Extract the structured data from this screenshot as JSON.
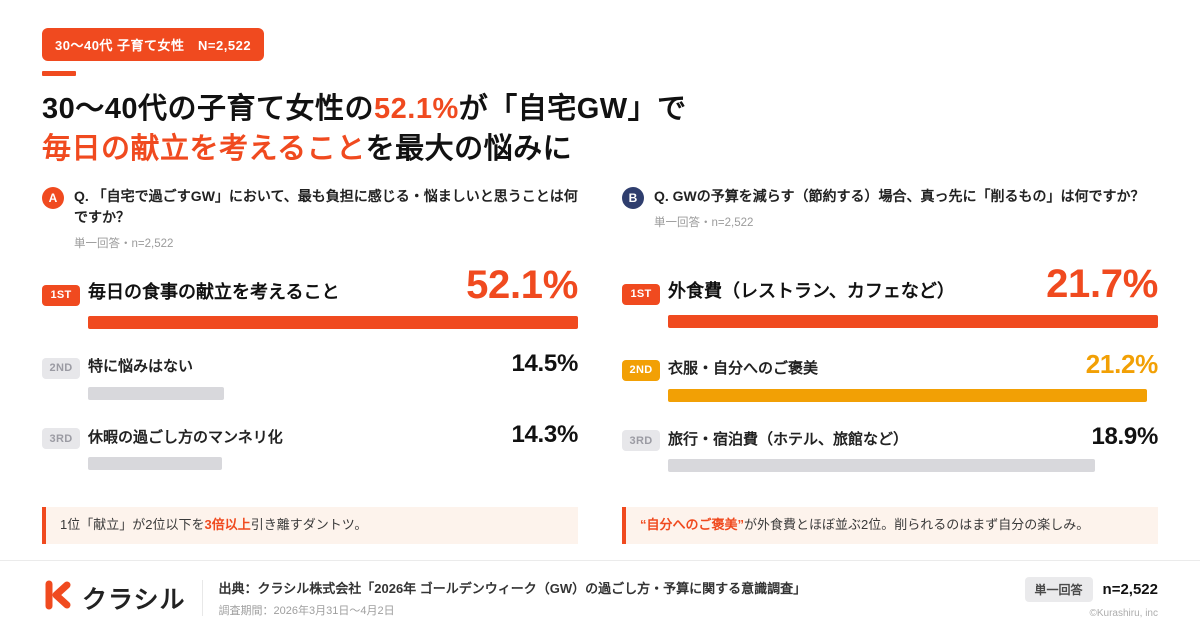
{
  "colors": {
    "accent": "#F04A1F",
    "amber": "#F2A005",
    "gray_bar": "#D8D8DC",
    "marker_b": "#2F3E6E",
    "note_bg": "#FDF3EC"
  },
  "header": {
    "badge": "30〜40代 子育て女性　N=2,522",
    "title": {
      "l1_pre": "30〜40代の子育て女性の",
      "l1_highlight": "52.1%",
      "l1_post": "が「自宅GW」で",
      "l2_highlight": "毎日の献立を考えること",
      "l2_post": "を最大の悩みに"
    }
  },
  "panel_a": {
    "marker": "A",
    "question": "Q. 「自宅で過ごすGW」において、最も負担に感じる・悩ましいと思うことは何ですか？",
    "answer_type": "単一回答・n=2,522",
    "rows": [
      {
        "rank": "1ST",
        "label": "毎日の食事の献立を考えること",
        "value": "52.1%",
        "pct": 100
      },
      {
        "rank": "2ND",
        "label": "特に悩みはない",
        "value": "14.5%",
        "pct": 27.8
      },
      {
        "rank": "3RD",
        "label": "休暇の過ごし方のマンネリ化",
        "value": "14.3%",
        "pct": 27.4
      }
    ],
    "note": {
      "pre": "1位「献立」が2位以下を",
      "highlight": "3倍以上",
      "post": "引き離すダントツ。"
    }
  },
  "panel_b": {
    "marker": "B",
    "question": "Q. GWの予算を減らす（節約する）場合、真っ先に「削るもの」は何ですか？",
    "answer_type": "単一回答・n=2,522",
    "rows": [
      {
        "rank": "1ST",
        "label": "外食費（レストラン、カフェなど）",
        "value": "21.7%",
        "pct": 100
      },
      {
        "rank": "2ND",
        "label": "衣服・自分へのご褒美",
        "value": "21.2%",
        "pct": 97.7
      },
      {
        "rank": "3RD",
        "label": "旅行・宿泊費（ホテル、旅館など）",
        "value": "18.9%",
        "pct": 87.1
      }
    ],
    "note": {
      "pre": "",
      "highlight": "“自分へのご褒美”",
      "post": "が外食費とほぼ並ぶ2位。削られるのはまず自分の楽しみ。"
    }
  },
  "footer": {
    "brand": "クラシル",
    "source_line1": "出典：クラシル株式会社「2026年 ゴールデンウィーク（GW）の過ごし方・予算に関する意識調査」",
    "source_line2": "調査期間：2026年3月31日〜4月2日",
    "answer_badge": "単一回答",
    "n_label": "n=2,522",
    "copyright": "©Kurashiru, inc"
  },
  "chart_data": [
    {
      "type": "bar",
      "orientation": "horizontal",
      "title": "Q. 「自宅で過ごすGW」において、最も負担に感じる・悩ましいと思うことは何ですか？",
      "subtitle": "単一回答・n=2,522",
      "categories": [
        "毎日の食事の献立を考えること",
        "特に悩みはない",
        "休暇の過ごし方のマンネリ化"
      ],
      "values": [
        52.1,
        14.5,
        14.3
      ],
      "unit": "%",
      "bar_colors": [
        "#F04A1F",
        "#D8D8DC",
        "#D8D8DC"
      ]
    },
    {
      "type": "bar",
      "orientation": "horizontal",
      "title": "Q. GWの予算を減らす（節約する）場合、真っ先に「削るもの」は何ですか？",
      "subtitle": "単一回答・n=2,522",
      "categories": [
        "外食費（レストラン、カフェなど）",
        "衣服・自分へのご褒美",
        "旅行・宿泊費（ホテル、旅館など）"
      ],
      "values": [
        21.7,
        21.2,
        18.9
      ],
      "unit": "%",
      "bar_colors": [
        "#F04A1F",
        "#F2A005",
        "#D8D8DC"
      ]
    }
  ]
}
